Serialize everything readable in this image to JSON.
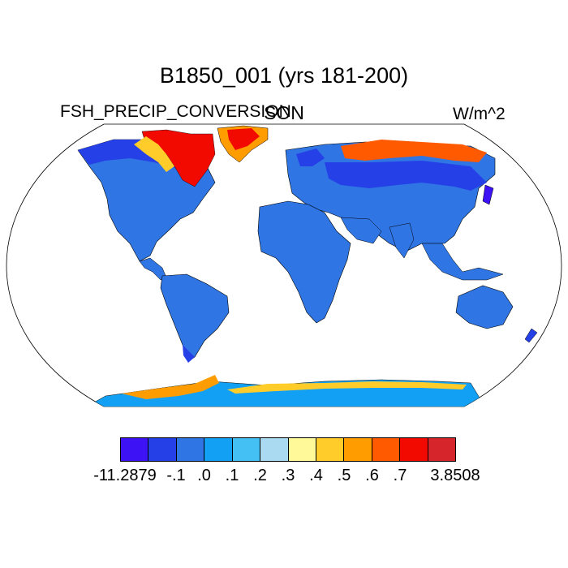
{
  "title": "B1850_001 (yrs 181-200)",
  "left_label": "FSH_PRECIP_CONVERSION",
  "center_label": "SON",
  "right_label": "W/m^2",
  "colorbar": {
    "colors": [
      "#3d12f5",
      "#2640e8",
      "#2f75e4",
      "#12a0f4",
      "#45c0f4",
      "#aadaf2",
      "#fff99a",
      "#ffcc2a",
      "#ff9d00",
      "#ff5a00",
      "#f20a00",
      "#d6262b"
    ],
    "labels": [
      "-11.2879",
      "-.1",
      ".0",
      ".1",
      ".2",
      ".3",
      ".4",
      ".5",
      ".6",
      ".7",
      "3.8508"
    ]
  }
}
